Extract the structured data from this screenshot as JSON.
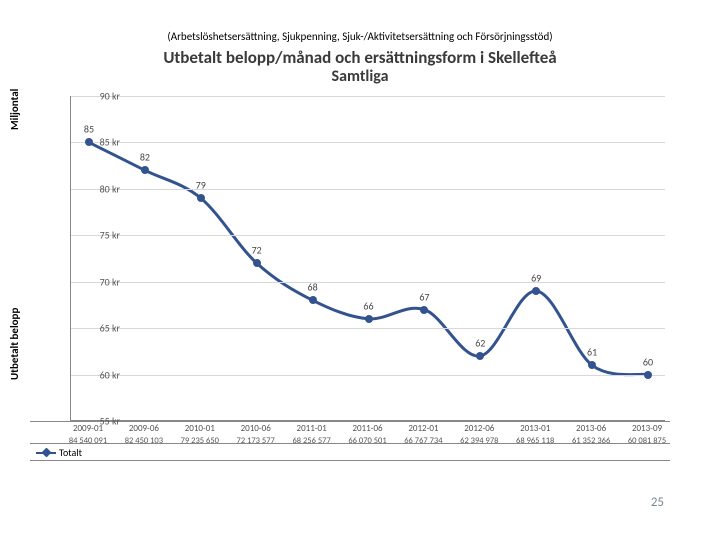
{
  "caption": "(Arbetslöshetsersättning, Sjukpenning, Sjuk-/Aktivitetsersättning och Försörjningsstöd)",
  "title_line1": "Utbetalt belopp/månad och ersättningsform i Skellefteå",
  "title_line2": "Samtliga",
  "y_axis_label_top": "Miljontal",
  "y_axis_label_bottom": "Utbetalt belopp",
  "page_number": "25",
  "legend_label": "Totalt",
  "chart": {
    "type": "line",
    "ylim": [
      55,
      90
    ],
    "ytick_step": 5,
    "ytick_suffix": " kr",
    "line_color": "#33538f",
    "marker_color": "#33538f",
    "marker_size": 8,
    "line_width": 3,
    "grid_color": "#d8d8d8",
    "background": "#ffffff",
    "categories": [
      "2009-01",
      "2009-06",
      "2010-01",
      "2010-06",
      "2011-01",
      "2011-06",
      "2012-01",
      "2012-06",
      "2013-01",
      "2013-06",
      "2013-09"
    ],
    "values": [
      85,
      82,
      79,
      72,
      68,
      66,
      67,
      62,
      69,
      61,
      60
    ],
    "table_values": [
      "84 540 091",
      "82 450 103",
      "79 235 650",
      "72 173 577",
      "68 256 577",
      "66 070 501",
      "66 767 734",
      "62 394 978",
      "68 965 118",
      "61 352 366",
      "60 081 875"
    ]
  }
}
